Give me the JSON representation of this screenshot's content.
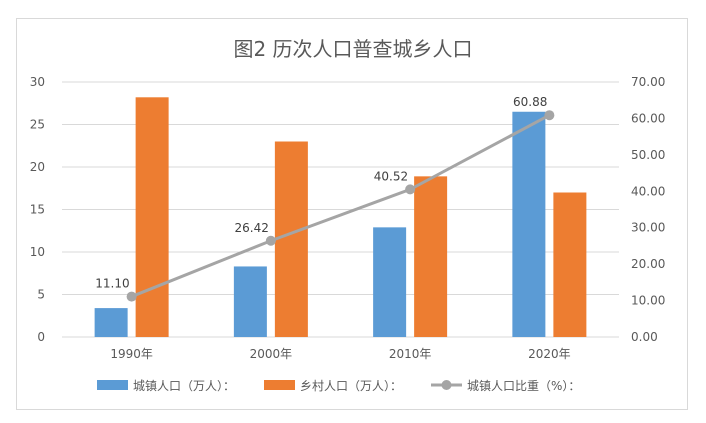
{
  "chart_data": {
    "type": "bar",
    "title": "图2 历次人口普查城乡人口",
    "categories": [
      "1990年",
      "2000年",
      "2010年",
      "2020年"
    ],
    "series": [
      {
        "name": "城镇人口（万人）：",
        "kind": "bar",
        "axis": "left",
        "color": "#5b9bd5",
        "values": [
          3.4,
          8.3,
          12.9,
          26.5
        ]
      },
      {
        "name": "乡村人口（万人）：",
        "kind": "bar",
        "axis": "left",
        "color": "#ed7d31",
        "values": [
          28.2,
          23.0,
          18.9,
          17.0
        ]
      },
      {
        "name": "城镇人口比重（%）：",
        "kind": "line",
        "axis": "right",
        "color": "#a5a5a5",
        "values": [
          11.1,
          26.42,
          40.52,
          60.88
        ],
        "labels": [
          "11.10",
          "26.42",
          "40.52",
          "60.88"
        ]
      }
    ],
    "y_left": {
      "ylim": [
        0,
        30
      ],
      "ticks": [
        "0",
        "5",
        "10",
        "15",
        "20",
        "25",
        "30"
      ]
    },
    "y_right": {
      "ylim": [
        0,
        70
      ],
      "ticks": [
        "0.00",
        "10.00",
        "20.00",
        "30.00",
        "40.00",
        "50.00",
        "60.00",
        "70.00"
      ]
    },
    "grid": true,
    "legend_position": "bottom"
  }
}
